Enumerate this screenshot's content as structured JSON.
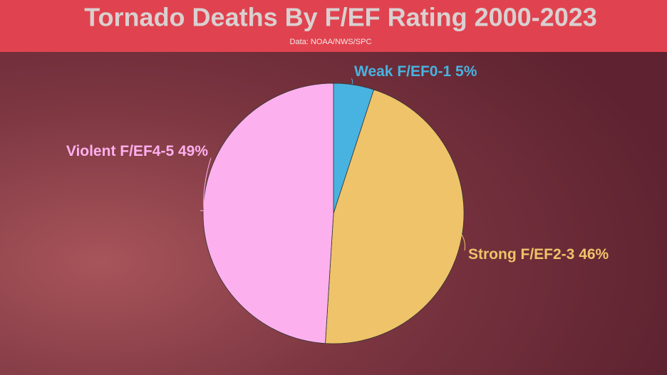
{
  "chart_data": {
    "type": "pie",
    "title": "Tornado Deaths By F/EF Rating 2000-2023",
    "subtitle": "Data: NOAA/NWS/SPC",
    "categories": [
      "Weak F/EF0-1",
      "Strong F/EF2-3",
      "Violent F/EF4-5"
    ],
    "values": [
      5,
      46,
      49
    ],
    "value_labels": [
      "5%",
      "46%",
      "49%"
    ],
    "colors": [
      "#48b3e0",
      "#efc36a",
      "#fdb0ee"
    ]
  }
}
